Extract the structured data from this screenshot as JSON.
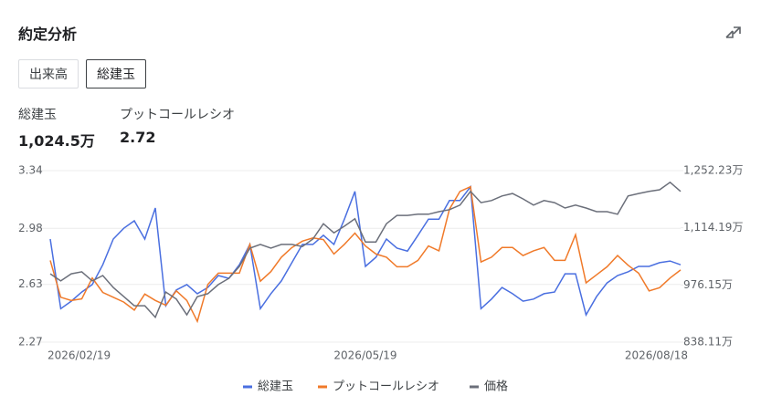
{
  "header": {
    "title": "約定分析",
    "tabs": [
      "出来高",
      "総建玉"
    ]
  },
  "stats": [
    {
      "label": "総建玉",
      "value": "1,024.5万"
    },
    {
      "label": "プットコールレシオ",
      "value": "2.72"
    }
  ],
  "chart_data": {
    "type": "line",
    "categories": [
      "2026/02/19",
      null,
      null,
      null,
      null,
      null,
      null,
      null,
      null,
      null,
      null,
      null,
      null,
      null,
      null,
      null,
      null,
      null,
      null,
      null,
      null,
      null,
      null,
      null,
      null,
      null,
      null,
      null,
      null,
      null,
      "2026/05/19",
      null,
      null,
      null,
      null,
      null,
      null,
      null,
      null,
      null,
      null,
      null,
      null,
      null,
      null,
      null,
      null,
      null,
      null,
      null,
      null,
      null,
      null,
      null,
      null,
      null,
      null,
      null,
      null,
      null,
      "2026/08/18"
    ],
    "series": [
      {
        "name": "総建玉",
        "color": "#4a6fe0",
        "axis": "y2",
        "values": [
          1087,
          919,
          937,
          959,
          977,
          1025,
          1087,
          1113,
          1131,
          1087,
          1162,
          926,
          964,
          977,
          955,
          970,
          999,
          992,
          1025,
          1074,
          919,
          955,
          986,
          1030,
          1074,
          1074,
          1096,
          1074,
          1135,
          1202,
          1021,
          1043,
          1087,
          1065,
          1058,
          1096,
          1135,
          1135,
          1180,
          1180,
          1213,
          919,
          942,
          970,
          955,
          937,
          942,
          955,
          959,
          1003,
          1003,
          904,
          948,
          981,
          999,
          1008,
          1021,
          1021,
          1030,
          1034,
          1025
        ]
      },
      {
        "name": "プットコールレシオ",
        "color": "#f07a2a",
        "values": [
          2.78,
          2.55,
          2.53,
          2.54,
          2.67,
          2.58,
          2.55,
          2.52,
          2.47,
          2.57,
          2.53,
          2.5,
          2.59,
          2.53,
          2.4,
          2.63,
          2.7,
          2.7,
          2.7,
          2.88,
          2.65,
          2.71,
          2.8,
          2.86,
          2.9,
          2.92,
          2.91,
          2.82,
          2.88,
          2.95,
          2.87,
          2.82,
          2.8,
          2.74,
          2.74,
          2.78,
          2.87,
          2.84,
          3.1,
          3.21,
          3.24,
          2.77,
          2.8,
          2.86,
          2.86,
          2.81,
          2.84,
          2.86,
          2.78,
          2.78,
          2.94,
          2.64,
          2.69,
          2.74,
          2.81,
          2.75,
          2.7,
          2.59,
          2.61,
          2.67,
          2.72
        ]
      },
      {
        "name": "価格",
        "color": "#6b6f7a",
        "axis": "y2",
        "values": [
          1003,
          986,
          1003,
          1008,
          986,
          999,
          970,
          948,
          926,
          926,
          898,
          959,
          942,
          904,
          948,
          955,
          977,
          992,
          1021,
          1065,
          1074,
          1065,
          1074,
          1074,
          1069,
          1087,
          1124,
          1102,
          1118,
          1136,
          1080,
          1080,
          1124,
          1144,
          1144,
          1147,
          1147,
          1153,
          1158,
          1169,
          1202,
          1175,
          1180,
          1191,
          1197,
          1184,
          1169,
          1180,
          1175,
          1162,
          1169,
          1162,
          1153,
          1153,
          1147,
          1191,
          1197,
          1202,
          1206,
          1224,
          1202
        ]
      }
    ],
    "ylim": [
      2.27,
      3.34
    ],
    "yticks": [
      2.27,
      2.63,
      2.98,
      3.34
    ],
    "y2lim": [
      838.11,
      1252.23
    ],
    "y2ticks": [
      {
        "value": 838.11,
        "label": "838.11万"
      },
      {
        "value": 976.15,
        "label": "976.15万"
      },
      {
        "value": 1114.19,
        "label": "1,114.19万"
      },
      {
        "value": 1252.23,
        "label": "1,252.23万"
      }
    ],
    "grid": true,
    "legend": "bottom"
  }
}
